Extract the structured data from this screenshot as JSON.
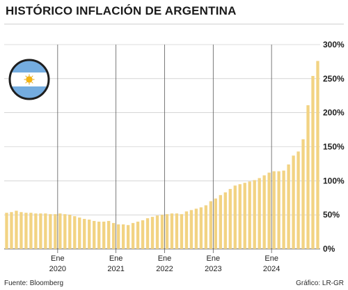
{
  "header": {
    "title": "HISTÓRICO INFLACIÓN DE ARGENTINA"
  },
  "footer": {
    "source": "Fuente: Bloomberg",
    "credit": "Gráfico: LR-GR"
  },
  "flag": {
    "icon": "argentina-flag-icon",
    "colors": {
      "celeste": "#74acdf",
      "white": "#ffffff",
      "sun": "#f6b40e"
    }
  },
  "colors": {
    "bar": "#f2d383",
    "grid": "#bdbdbd",
    "vline": "#5a5a5a"
  },
  "chart_data": {
    "type": "bar",
    "title": "HISTÓRICO INFLACIÓN DE ARGENTINA",
    "xlabel": "",
    "ylabel": "",
    "ylim": [
      0,
      300
    ],
    "yticks": [
      0,
      50,
      100,
      150,
      200,
      250,
      300
    ],
    "ytick_labels": [
      "0%",
      "50%",
      "100%",
      "150%",
      "200%",
      "250%",
      "300%"
    ],
    "xtick_labels": [
      {
        "month": "Ene",
        "year": "2020",
        "index": 11
      },
      {
        "month": "Ene",
        "year": "2021",
        "index": 23
      },
      {
        "month": "Ene",
        "year": "2022",
        "index": 33
      },
      {
        "month": "Ene",
        "year": "2023",
        "index": 43
      },
      {
        "month": "Ene",
        "year": "2024",
        "index": 55
      }
    ],
    "grid": "horizontal",
    "values": [
      53,
      54,
      56,
      54,
      53,
      53,
      52,
      52,
      52,
      51,
      51,
      52,
      51,
      50,
      48,
      46,
      44,
      43,
      41,
      40,
      40,
      41,
      38,
      36,
      36,
      35,
      38,
      40,
      42,
      45,
      47,
      49,
      50,
      51,
      52,
      52,
      51,
      55,
      57,
      59,
      61,
      64,
      70,
      74,
      79,
      83,
      88,
      93,
      95,
      97,
      99,
      101,
      104,
      108,
      112,
      114,
      114,
      115,
      124,
      137,
      143,
      161,
      211,
      254,
      276
    ]
  }
}
